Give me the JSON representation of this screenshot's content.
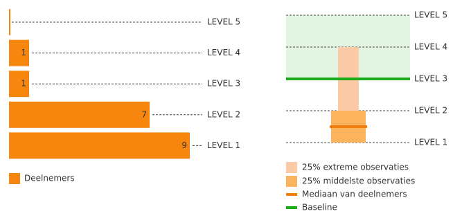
{
  "chart_data": [
    {
      "type": "bar",
      "orientation": "horizontal",
      "categories": [
        "LEVEL 5",
        "LEVEL 4",
        "LEVEL 3",
        "LEVEL 2",
        "LEVEL 1"
      ],
      "series": [
        {
          "name": "Deelnemers",
          "color": "#f7860f",
          "values": [
            0,
            1,
            1,
            7,
            9
          ]
        }
      ]
    },
    {
      "type": "range",
      "ylim": [
        1,
        5
      ],
      "yticks": [
        {
          "value": 1,
          "label": "LEVEL 1"
        },
        {
          "value": 2,
          "label": "LEVEL 2"
        },
        {
          "value": 3,
          "label": "LEVEL 3"
        },
        {
          "value": 4,
          "label": "LEVEL 4"
        },
        {
          "value": 5,
          "label": "LEVEL 5"
        }
      ],
      "band": {
        "values": [
          3,
          5
        ],
        "color": "#e3f4e3"
      },
      "series": [
        {
          "name": "25% extreme observaties",
          "color": "#fccaa6",
          "values": [
            1,
            4
          ]
        },
        {
          "name": "25% middelste observaties",
          "color": "#fbb35e",
          "values": [
            1,
            2
          ]
        },
        {
          "name": "Mediaan van deelnemers",
          "color": "#f07f0d",
          "values": [
            1.5
          ]
        },
        {
          "name": "Baseline",
          "color": "#1aac1a",
          "values": [
            3
          ]
        }
      ]
    }
  ]
}
